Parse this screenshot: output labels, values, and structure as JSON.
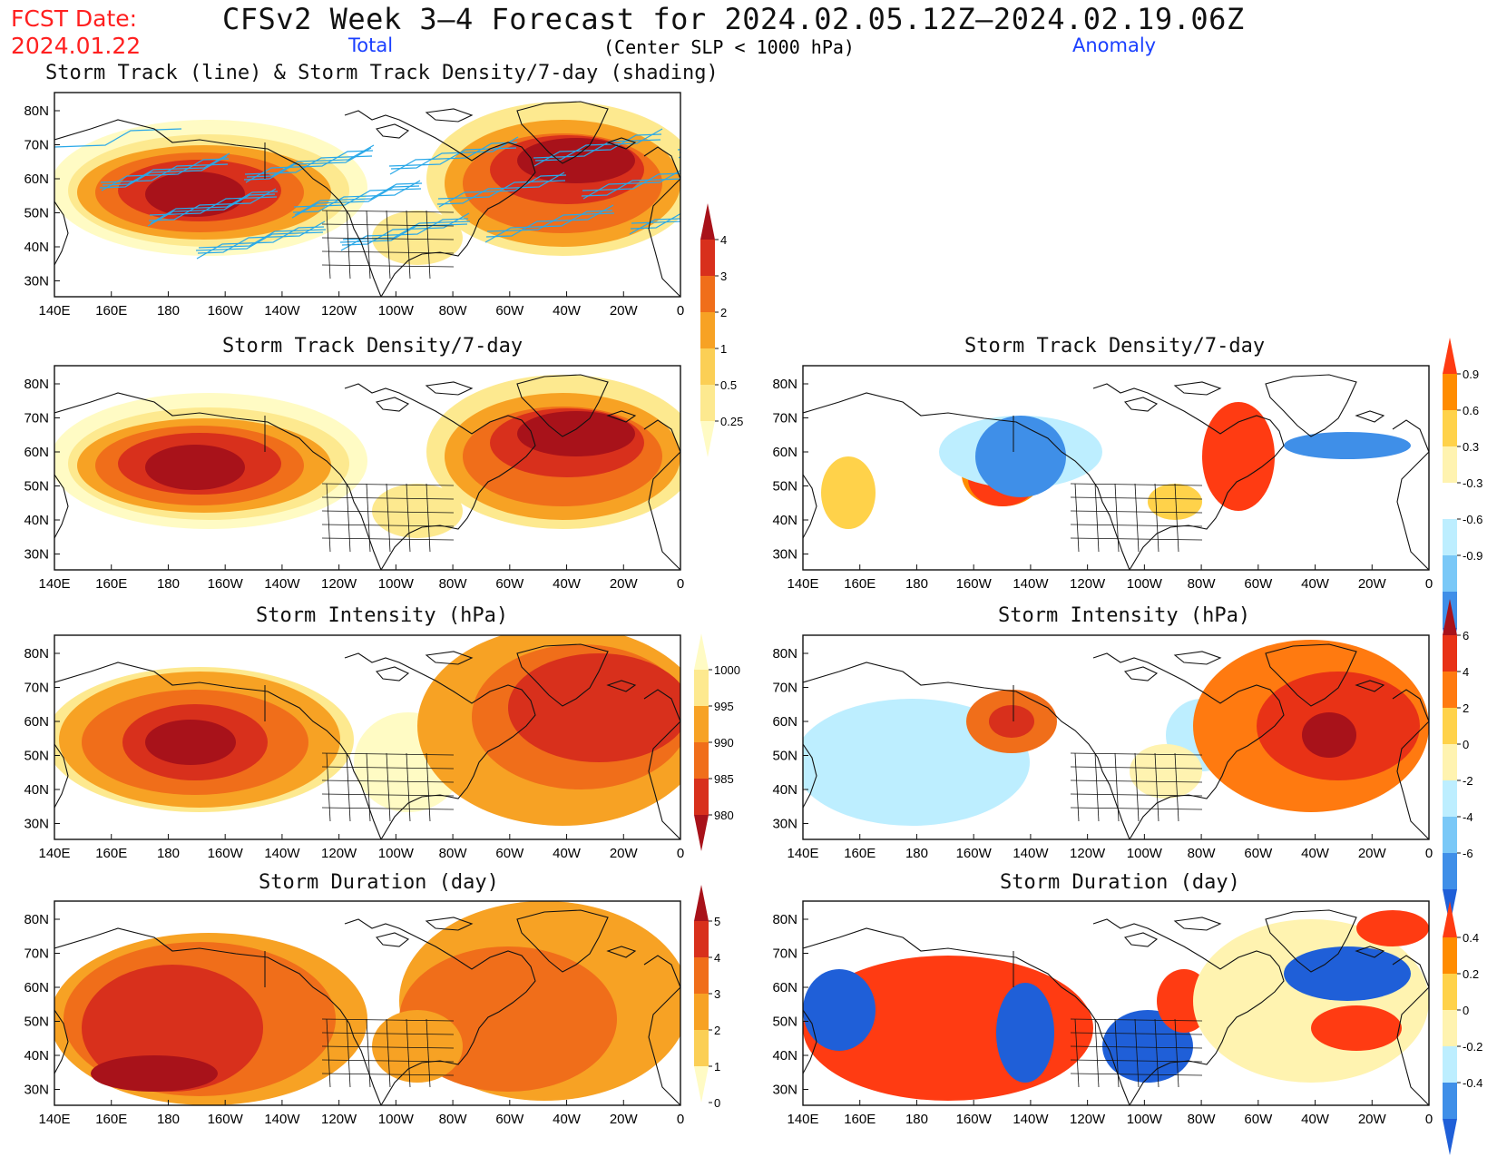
{
  "header": {
    "fcst_label": "FCST Date:",
    "fcst_date": "2024.01.22",
    "title": "CFSv2 Week 3–4 Forecast for 2024.02.05.12Z–2024.02.19.06Z",
    "col_total": "Total",
    "condition": "(Center SLP < 1000 hPa)",
    "col_anomaly": "Anomaly"
  },
  "axes": {
    "lat_labels": [
      "80N",
      "70N",
      "60N",
      "50N",
      "40N",
      "30N"
    ],
    "lon_labels": [
      "140E",
      "160E",
      "180",
      "160W",
      "140W",
      "120W",
      "100W",
      "80W",
      "60W",
      "40W",
      "20W",
      "0"
    ]
  },
  "panels": [
    {
      "id": "track-total",
      "title": "Storm Track (line) & Storm Track Density/7-day (shading)",
      "variable": "storm-track-density-with-tracks"
    },
    {
      "id": "density-total",
      "title": "Storm Track Density/7-day",
      "variable": "storm-track-density"
    },
    {
      "id": "density-anom",
      "title": "Storm Track Density/7-day",
      "variable": "storm-track-density-anomaly"
    },
    {
      "id": "intensity-total",
      "title": "Storm Intensity (hPa)",
      "variable": "storm-intensity"
    },
    {
      "id": "intensity-anom",
      "title": "Storm Intensity (hPa)",
      "variable": "storm-intensity-anomaly"
    },
    {
      "id": "duration-total",
      "title": "Storm Duration (day)",
      "variable": "storm-duration"
    },
    {
      "id": "duration-anom",
      "title": "Storm Duration (day)",
      "variable": "storm-duration-anomaly"
    }
  ],
  "colorbars": {
    "density_total": {
      "labels": [
        "4",
        "3",
        "2",
        "1",
        "0.5",
        "0.25"
      ],
      "colors": [
        "#a8121a",
        "#d8301c",
        "#f06e1a",
        "#f7a224",
        "#fbcf55",
        "#fde98f",
        "#fffbc4"
      ]
    },
    "density_anom": {
      "labels": [
        "0.9",
        "0.6",
        "0.3",
        "-0.3",
        "-0.6",
        "-0.9"
      ],
      "colors": [
        "#ff3b12",
        "#ff8c00",
        "#ffd24a",
        "#fff3b0",
        "#ffffff",
        "#bdeeff",
        "#7ac8f7",
        "#3f8fe8",
        "#1f5fd8"
      ]
    },
    "intensity_total": {
      "labels": [
        "1000",
        "995",
        "990",
        "985",
        "980"
      ],
      "colors": [
        "#fffbc4",
        "#fde98f",
        "#f7a224",
        "#f06e1a",
        "#d8301c",
        "#a8121a"
      ]
    },
    "intensity_anom": {
      "labels": [
        "6",
        "4",
        "2",
        "0",
        "-2",
        "-4",
        "-6"
      ],
      "colors": [
        "#a8121a",
        "#e83216",
        "#ff7a10",
        "#ffd24a",
        "#fff3b0",
        "#bdeeff",
        "#7ac8f7",
        "#3f8fe8",
        "#1f5fd8"
      ]
    },
    "duration_total": {
      "labels": [
        "5",
        "4",
        "3",
        "2",
        "1",
        "0"
      ],
      "colors": [
        "#a8121a",
        "#d8301c",
        "#f06e1a",
        "#f7a224",
        "#fbcf55",
        "#fffbc4"
      ]
    },
    "duration_anom": {
      "labels": [
        "0.4",
        "0.2",
        "0",
        "-0.2",
        "-0.4"
      ],
      "colors": [
        "#ff3b12",
        "#ff8c00",
        "#ffd24a",
        "#fff3b0",
        "#bdeeff",
        "#3f8fe8",
        "#1f5fd8"
      ]
    }
  }
}
